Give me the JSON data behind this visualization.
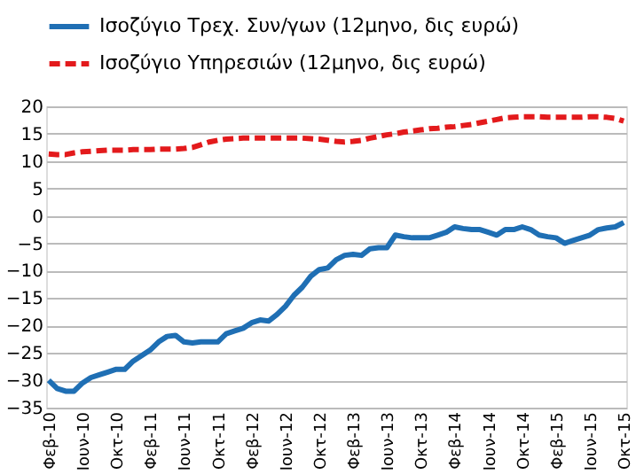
{
  "chart_data": {
    "type": "line",
    "categories": [
      "Φεβ-10",
      null,
      null,
      null,
      "Ιουν-10",
      null,
      null,
      null,
      "Οκτ-10",
      null,
      null,
      null,
      "Φεβ-11",
      null,
      null,
      null,
      "Ιουν-11",
      null,
      null,
      null,
      "Οκτ-11",
      null,
      null,
      null,
      "Φεβ-12",
      null,
      null,
      null,
      "Ιουν-12",
      null,
      null,
      null,
      "Οκτ-12",
      null,
      null,
      null,
      "Φεβ-13",
      null,
      null,
      null,
      "Ιουν-13",
      null,
      null,
      null,
      "Οκτ-13",
      null,
      null,
      null,
      "Φεβ-14",
      null,
      null,
      null,
      "Ιουν-14",
      null,
      null,
      null,
      "Οκτ-14",
      null,
      null,
      null,
      "Φεβ-15",
      null,
      null,
      null,
      "Ιουν-15",
      null,
      null,
      null,
      "Οκτ-15"
    ],
    "series": [
      {
        "name": "Ισοζύγιο Τρεχ. Συν/γων (12μηνο, δις ευρώ)",
        "color": "#1f6fb4",
        "line_style": "solid",
        "values": [
          -30,
          -31.5,
          -32,
          -32,
          -30.5,
          -29.5,
          -29,
          -28.5,
          -28,
          -28,
          -26.5,
          -25.5,
          -24.5,
          -23,
          -22,
          -21.8,
          -23,
          -23.2,
          -23,
          -23,
          -23,
          -21.5,
          -21,
          -20.5,
          -19.5,
          -19,
          -19.2,
          -18,
          -16.5,
          -14.5,
          -13,
          -11,
          -9.8,
          -9.5,
          -8,
          -7.2,
          -7,
          -7.2,
          -6,
          -5.8,
          -5.8,
          -3.5,
          -3.8,
          -4,
          -4,
          -4,
          -3.5,
          -3,
          -2,
          -2.3,
          -2.5,
          -2.5,
          -3,
          -3.5,
          -2.5,
          -2.5,
          -2,
          -2.5,
          -3.5,
          -3.8,
          -4,
          -5,
          -4.5,
          -4,
          -3.5,
          -2.5,
          -2.2,
          -2,
          -1.2
        ]
      },
      {
        "name": "Ισοζύγιο Υπηρεσιών (12μηνο, δις ευρώ)",
        "color": "#e31a1c",
        "line_style": "dashed",
        "values": [
          11.3,
          11.2,
          11.2,
          11.5,
          11.7,
          11.8,
          11.9,
          12,
          12,
          12,
          12.1,
          12.1,
          12.1,
          12.2,
          12.2,
          12.2,
          12.3,
          12.5,
          13,
          13.5,
          13.8,
          14,
          14.1,
          14.2,
          14.2,
          14.2,
          14.2,
          14.2,
          14.2,
          14.2,
          14.2,
          14.1,
          14,
          13.8,
          13.6,
          13.5,
          13.6,
          13.8,
          14.2,
          14.5,
          14.8,
          15,
          15.3,
          15.5,
          15.7,
          15.9,
          16,
          16.2,
          16.3,
          16.5,
          16.7,
          17,
          17.3,
          17.6,
          17.9,
          18,
          18.1,
          18.1,
          18.1,
          18,
          18,
          18,
          18,
          18,
          18.1,
          18.1,
          18,
          17.8,
          17.3
        ]
      }
    ],
    "ylim": [
      -35,
      20
    ],
    "yticks": [
      -35,
      -30,
      -25,
      -20,
      -15,
      -10,
      -5,
      0,
      5,
      10,
      15,
      20
    ],
    "grid": "y",
    "legend": "top"
  }
}
